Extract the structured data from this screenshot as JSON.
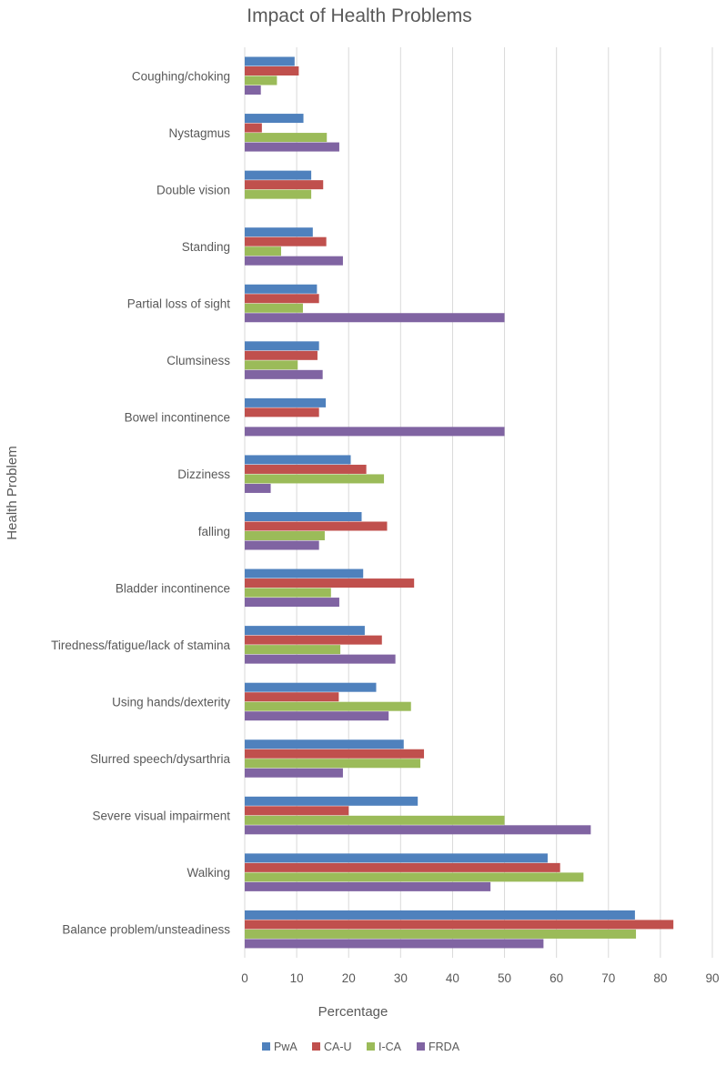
{
  "chart_data": {
    "type": "bar",
    "orientation": "horizontal",
    "title": "Impact of Health Problems",
    "xlabel": "Percentage",
    "ylabel": "Health Problem",
    "xlim": [
      0,
      90
    ],
    "xticks": [
      0,
      10,
      20,
      30,
      40,
      50,
      60,
      70,
      80,
      90
    ],
    "grid": "vertical",
    "legend_position": "bottom",
    "categories": [
      "Coughing/choking",
      "Nystagmus",
      "Double vision",
      "Standing",
      "Partial loss of sight",
      "Clumsiness",
      "Bowel incontinence",
      "Dizziness",
      "falling",
      "Bladder incontinence",
      "Tiredness/fatigue/lack of stamina",
      "Using hands/dexterity",
      "Slurred speech/dysarthria",
      "Severe visual impairment",
      "Walking",
      "Balance problem/unsteadiness"
    ],
    "series": [
      {
        "name": "PwA",
        "color": "#4f81bd",
        "values": [
          9.6,
          11.3,
          12.8,
          13.1,
          13.9,
          14.3,
          15.6,
          20.4,
          22.5,
          22.8,
          23.1,
          25.3,
          30.6,
          33.3,
          58.3,
          75.1
        ]
      },
      {
        "name": "CA-U",
        "color": "#c0504d",
        "values": [
          10.4,
          3.3,
          15.1,
          15.7,
          14.3,
          14.0,
          14.3,
          23.4,
          27.4,
          32.6,
          26.4,
          18.1,
          34.5,
          20.0,
          60.7,
          82.5
        ]
      },
      {
        "name": "I-CA",
        "color": "#9bbb59",
        "values": [
          6.2,
          15.8,
          12.8,
          7.0,
          11.2,
          10.2,
          0,
          26.8,
          15.4,
          16.6,
          18.4,
          32.0,
          33.8,
          50.0,
          65.2,
          75.3
        ]
      },
      {
        "name": "FRDA",
        "color": "#8064a2",
        "values": [
          3.1,
          18.2,
          0,
          18.9,
          50.0,
          15.0,
          50.0,
          5.0,
          14.3,
          18.2,
          29.0,
          27.7,
          18.9,
          66.6,
          47.3,
          57.5
        ]
      }
    ]
  }
}
